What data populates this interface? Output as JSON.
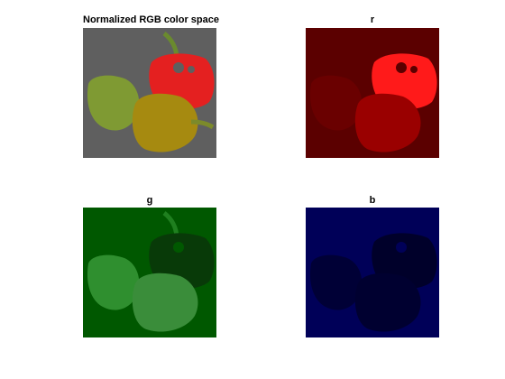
{
  "figure": {
    "panels": [
      {
        "title": "Normalized RGB color space",
        "channel": "rgb",
        "background": "#5f5f5f"
      },
      {
        "title": "r",
        "channel": "r",
        "background": "#5b0000"
      },
      {
        "title": "g",
        "channel": "g",
        "background": "#005800"
      },
      {
        "title": "b",
        "channel": "b",
        "background": "#000058"
      }
    ]
  }
}
